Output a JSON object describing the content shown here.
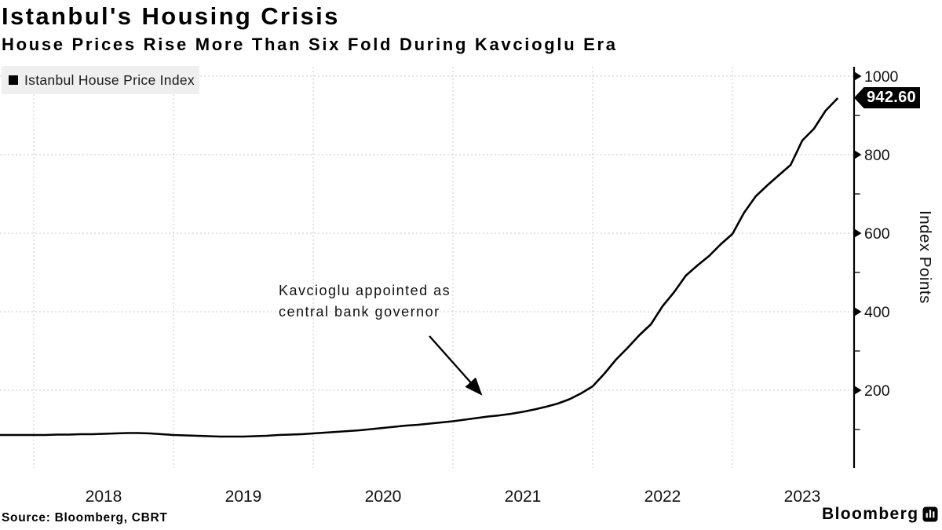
{
  "title": "Istanbul's Housing Crisis",
  "subtitle": "House Prices Rise More Than Six Fold During Kavcioglu Era",
  "legend": {
    "label": "Istanbul House Price Index"
  },
  "annotation": {
    "line1": "Kavcioglu appointed as",
    "line2": "central bank governor"
  },
  "value_tag": {
    "text": "942.60"
  },
  "y_axis": {
    "title": "Index Points"
  },
  "footer": {
    "source": "Source: Bloomberg, CBRT",
    "brand": "Bloomberg"
  },
  "colors": {
    "line": "#000000",
    "grid": "#c9c9c9",
    "axis": "#000000",
    "legend_bg": "#efefef",
    "tag_bg": "#000000",
    "tag_text": "#ffffff",
    "background": "#ffffff"
  },
  "chart_data": {
    "type": "line",
    "title": "Istanbul's Housing Crisis",
    "subtitle": "House Prices Rise More Than Six Fold During Kavcioglu Era",
    "ylabel": "Index Points",
    "ylim": [
      0,
      1024
    ],
    "y_major_ticks": [
      200,
      400,
      600,
      800,
      1000
    ],
    "y_minor_ticks": [
      100,
      300,
      500,
      700,
      900
    ],
    "x_year_labels": [
      "2018",
      "2019",
      "2020",
      "2021",
      "2022",
      "2023"
    ],
    "grid": "dashed",
    "legend_position": "top-left",
    "last_value": 942.6,
    "annotation_note": {
      "text": "Kavcioglu appointed as central bank governor",
      "arrow_target": "2021-04",
      "arrow_target_value_approx": 133
    },
    "series": [
      {
        "name": "Istanbul House Price Index",
        "color": "#000000",
        "start": "2017-10",
        "frequency": "monthly",
        "values": [
          86,
          86,
          86,
          86,
          86,
          87,
          87,
          88,
          88,
          89,
          90,
          91,
          91,
          90,
          88,
          86,
          85,
          84,
          83,
          82,
          82,
          82,
          83,
          84,
          86,
          87,
          88,
          90,
          92,
          94,
          96,
          98,
          101,
          104,
          107,
          110,
          112,
          115,
          118,
          121,
          125,
          129,
          133,
          136,
          140,
          145,
          151,
          158,
          166,
          177,
          192,
          210,
          242,
          278,
          308,
          340,
          368,
          414,
          450,
          492,
          518,
          542,
          572,
          598,
          652,
          694,
          722,
          748,
          774,
          836,
          866,
          912,
          942.6
        ]
      }
    ]
  }
}
